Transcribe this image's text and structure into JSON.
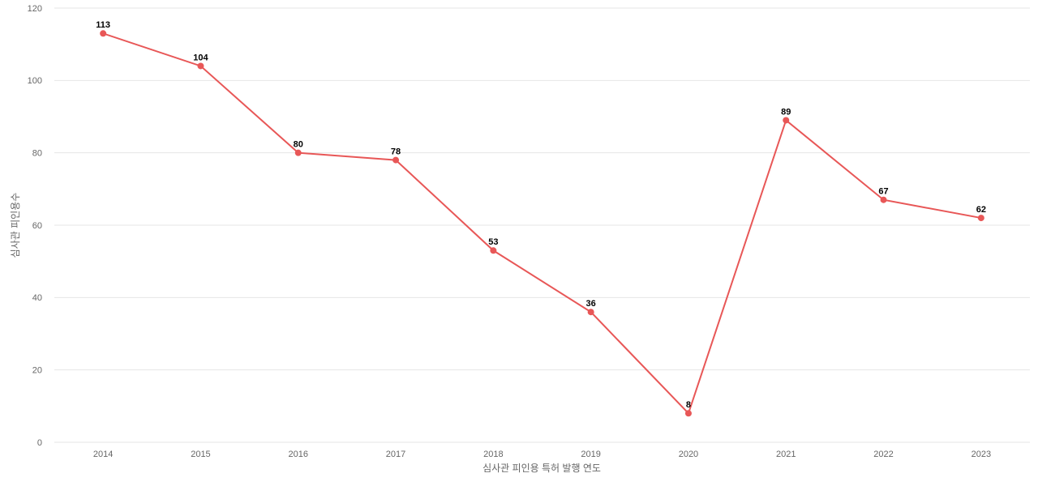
{
  "chart_data": {
    "type": "line",
    "x_label": "심사관 피인용 특허 발행 연도",
    "y_label": "심사관 피인용수",
    "categories": [
      "2014",
      "2015",
      "2016",
      "2017",
      "2018",
      "2019",
      "2020",
      "2021",
      "2022",
      "2023"
    ],
    "values": [
      113,
      104,
      80,
      78,
      53,
      36,
      8,
      89,
      67,
      62
    ],
    "color": "#e85757",
    "ylim": [
      0,
      120
    ],
    "yticks": [
      0,
      20,
      40,
      60,
      80,
      100,
      120
    ],
    "grid": true
  }
}
